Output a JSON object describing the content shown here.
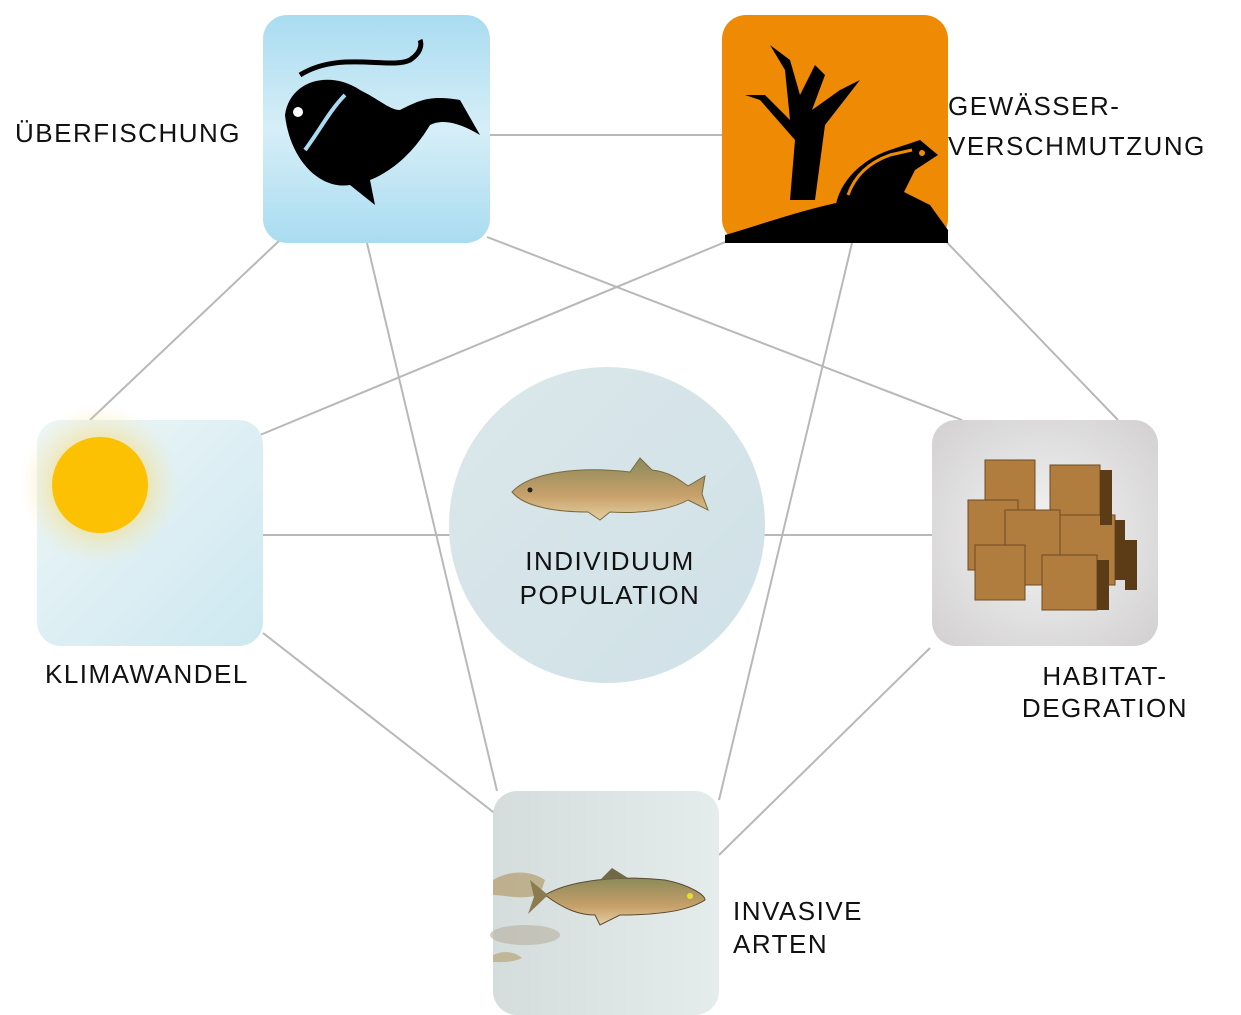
{
  "nodes": [
    {
      "lines": [
        "ÜBERFISCHUNG"
      ]
    },
    {
      "lines": [
        "GEWÄSSER-",
        "VERSCHMUTZUNG"
      ]
    },
    {
      "lines": [
        "KLIMAWANDEL"
      ]
    },
    {
      "lines": [
        "HABITAT-",
        "DEGRATION"
      ]
    },
    {
      "lines": [
        "INVASIVE",
        "ARTEN"
      ]
    }
  ],
  "center": {
    "lines": [
      "INDIVIDUUM",
      "POPULATION"
    ]
  }
}
